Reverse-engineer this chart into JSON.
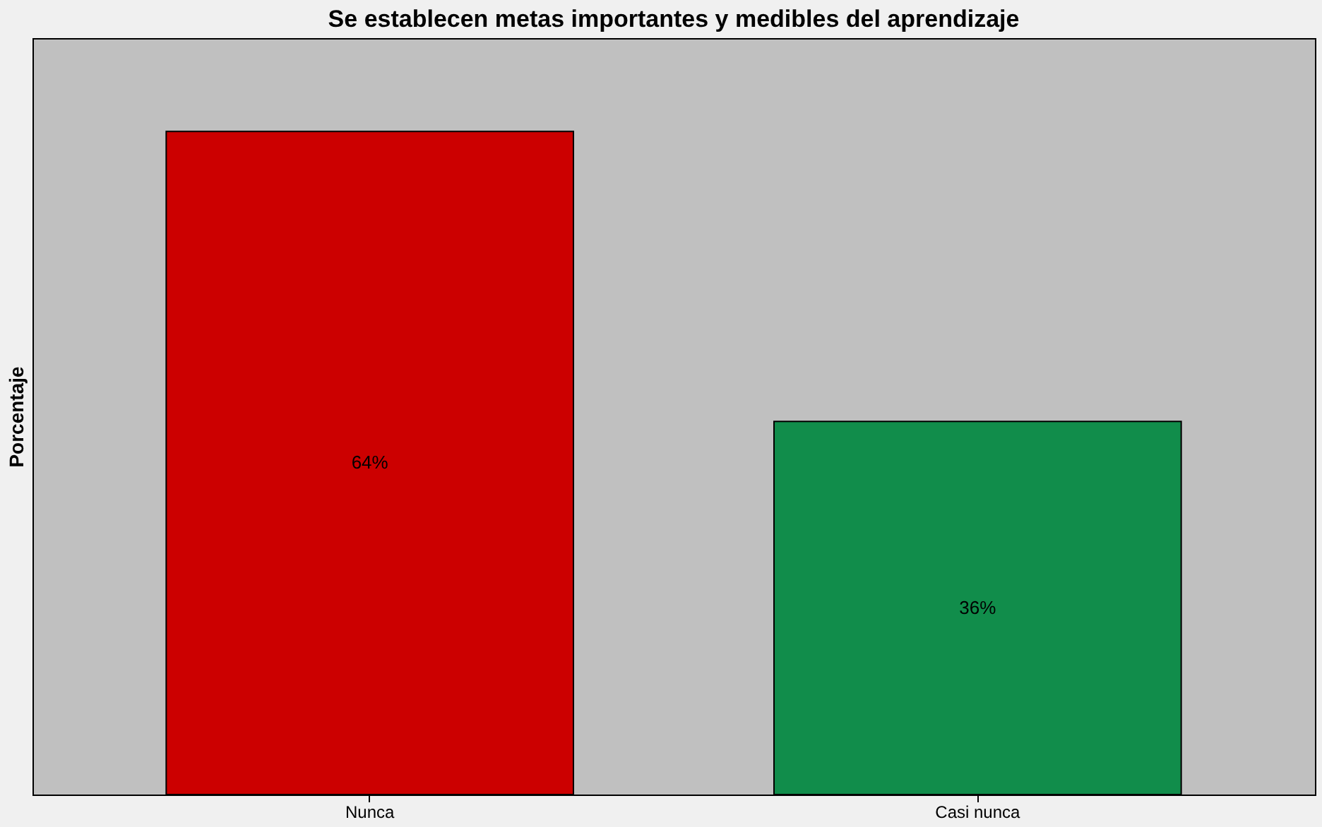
{
  "chart_data": {
    "type": "bar",
    "title": "Se establecen metas importantes y medibles del aprendizaje",
    "ylabel": "Porcentaje",
    "categories": [
      "Nunca",
      "Casi nunca"
    ],
    "values": [
      64,
      36
    ],
    "colors": [
      "#cc0000",
      "#118d4b"
    ],
    "value_labels": [
      "64%",
      "36%"
    ],
    "ylim": [
      0,
      73
    ],
    "tick_labels": "x",
    "grid": false
  }
}
